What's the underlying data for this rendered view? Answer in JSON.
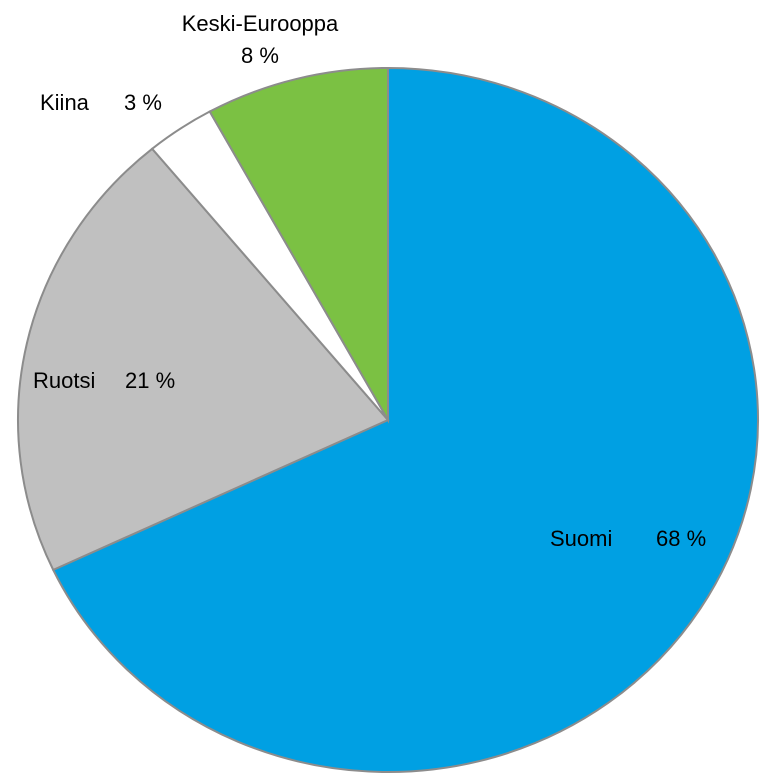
{
  "chart_data": {
    "type": "pie",
    "categories": [
      "Suomi",
      "Ruotsi",
      "Kiina",
      "Keski-Eurooppa"
    ],
    "values": [
      68,
      21,
      3,
      8
    ],
    "value_labels": [
      "68 %",
      "21 %",
      "3 %",
      "8 %"
    ],
    "colors": [
      "#00a0e3",
      "#c0c0c0",
      "#ffffff",
      "#7bc143"
    ]
  }
}
